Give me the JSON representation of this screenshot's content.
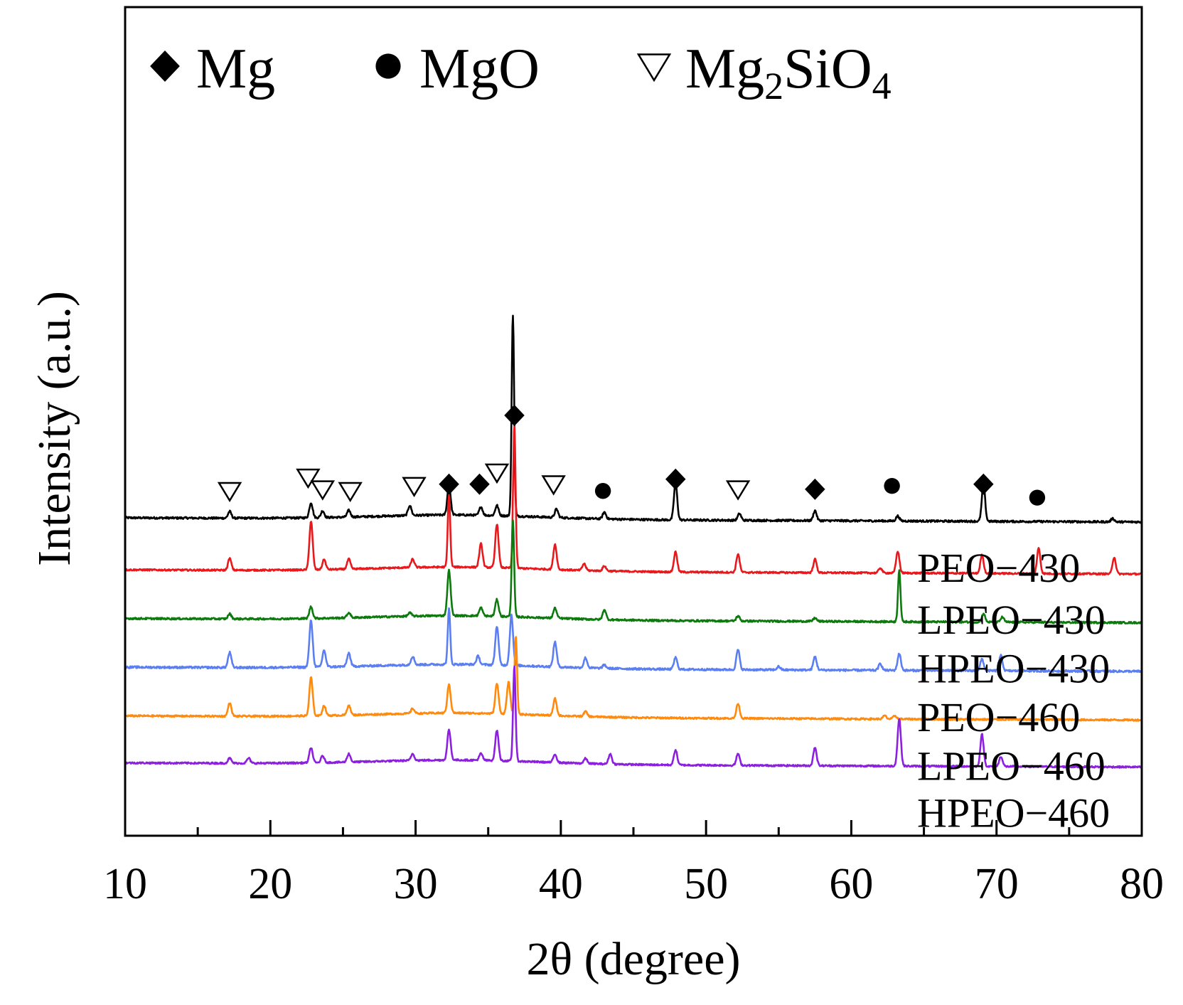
{
  "chart_data": {
    "type": "line",
    "title": "",
    "xlabel": "2θ (degree)",
    "ylabel": "Intensity (a.u.)",
    "xlim": [
      10,
      80
    ],
    "xticks": [
      10,
      20,
      30,
      40,
      50,
      60,
      70,
      80
    ],
    "yticks": [],
    "grid": false,
    "legend": {
      "placement": "top",
      "entries": [
        {
          "marker": "filled-diamond",
          "label": "Mg"
        },
        {
          "marker": "filled-circle",
          "label": "MgO"
        },
        {
          "marker": "open-triangle-down",
          "label": "Mg",
          "subscript": "2",
          "label_tail": "SiO",
          "subscript_tail": "4"
        }
      ]
    },
    "series": [
      {
        "name": "PEO−430",
        "color": "#000000",
        "baseline": 10.0,
        "noise": 0.12,
        "peaks": [
          [
            17.2,
            0.4
          ],
          [
            22.8,
            0.9
          ],
          [
            23.6,
            0.4
          ],
          [
            25.4,
            0.4
          ],
          [
            29.6,
            0.6
          ],
          [
            32.3,
            1.8
          ],
          [
            34.5,
            0.5
          ],
          [
            35.6,
            0.6
          ],
          [
            36.7,
            12.0
          ],
          [
            39.7,
            0.5
          ],
          [
            43.0,
            0.4
          ],
          [
            47.9,
            2.2
          ],
          [
            52.3,
            0.4
          ],
          [
            57.5,
            0.6
          ],
          [
            63.2,
            0.3
          ],
          [
            69.1,
            2.2
          ],
          [
            78.0,
            0.2
          ]
        ]
      },
      {
        "name": "LPEO−430",
        "color": "#e8191c",
        "baseline": 6.9,
        "noise": 0.1,
        "peaks": [
          [
            17.2,
            0.7
          ],
          [
            22.8,
            2.9
          ],
          [
            23.7,
            0.6
          ],
          [
            25.4,
            0.6
          ],
          [
            29.8,
            0.5
          ],
          [
            32.3,
            4.3
          ],
          [
            34.5,
            1.4
          ],
          [
            35.6,
            2.6
          ],
          [
            36.8,
            8.5
          ],
          [
            39.6,
            1.5
          ],
          [
            41.6,
            0.4
          ],
          [
            43.0,
            0.3
          ],
          [
            47.9,
            1.2
          ],
          [
            52.2,
            1.1
          ],
          [
            57.5,
            0.8
          ],
          [
            62.0,
            0.3
          ],
          [
            63.2,
            1.3
          ],
          [
            69.0,
            1.1
          ],
          [
            72.9,
            1.5
          ],
          [
            78.1,
            1.0
          ]
        ]
      },
      {
        "name": "HPEO−430",
        "color": "#0d7a0d",
        "baseline": 4.0,
        "noise": 0.11,
        "peaks": [
          [
            17.2,
            0.3
          ],
          [
            22.8,
            0.7
          ],
          [
            25.4,
            0.3
          ],
          [
            29.6,
            0.2
          ],
          [
            32.3,
            2.7
          ],
          [
            34.5,
            0.5
          ],
          [
            35.6,
            1.0
          ],
          [
            36.7,
            5.7
          ],
          [
            39.6,
            0.6
          ],
          [
            43.0,
            0.6
          ],
          [
            52.2,
            0.3
          ],
          [
            57.5,
            0.2
          ],
          [
            63.3,
            3.1
          ],
          [
            69.1,
            0.5
          ],
          [
            70.4,
            0.3
          ]
        ]
      },
      {
        "name": "PEO−460",
        "color": "#5b7ef2",
        "baseline": 1.1,
        "noise": 0.12,
        "peaks": [
          [
            17.2,
            0.9
          ],
          [
            22.8,
            2.8
          ],
          [
            23.7,
            1.0
          ],
          [
            25.4,
            0.8
          ],
          [
            29.8,
            0.5
          ],
          [
            32.3,
            3.3
          ],
          [
            34.3,
            0.5
          ],
          [
            35.6,
            2.3
          ],
          [
            36.6,
            3.0
          ],
          [
            39.6,
            1.5
          ],
          [
            41.7,
            0.6
          ],
          [
            43.0,
            0.2
          ],
          [
            47.9,
            0.7
          ],
          [
            52.2,
            1.2
          ],
          [
            55.0,
            0.2
          ],
          [
            57.5,
            0.8
          ],
          [
            62.0,
            0.4
          ],
          [
            63.3,
            1.0
          ],
          [
            69.0,
            0.7
          ],
          [
            70.3,
            0.9
          ]
        ]
      },
      {
        "name": "LPEO−460",
        "color": "#ff8a0d",
        "baseline": -1.8,
        "noise": 0.1,
        "peaks": [
          [
            17.2,
            0.8
          ],
          [
            22.8,
            2.3
          ],
          [
            23.7,
            0.6
          ],
          [
            25.4,
            0.6
          ],
          [
            29.8,
            0.3
          ],
          [
            32.3,
            1.7
          ],
          [
            35.6,
            1.8
          ],
          [
            36.4,
            1.9
          ],
          [
            36.9,
            4.7
          ],
          [
            39.6,
            1.0
          ],
          [
            41.7,
            0.3
          ],
          [
            52.2,
            0.9
          ],
          [
            62.3,
            0.2
          ],
          [
            63.0,
            0.2
          ]
        ]
      },
      {
        "name": "HPEO−460",
        "color": "#8c1fe0",
        "baseline": -4.6,
        "noise": 0.1,
        "peaks": [
          [
            17.2,
            0.3
          ],
          [
            18.5,
            0.3
          ],
          [
            22.8,
            0.9
          ],
          [
            23.6,
            0.4
          ],
          [
            25.4,
            0.5
          ],
          [
            29.8,
            0.4
          ],
          [
            32.3,
            1.8
          ],
          [
            34.5,
            0.4
          ],
          [
            35.6,
            1.8
          ],
          [
            36.8,
            5.7
          ],
          [
            39.6,
            0.5
          ],
          [
            41.7,
            0.3
          ],
          [
            43.4,
            0.6
          ],
          [
            47.9,
            0.9
          ],
          [
            52.2,
            0.7
          ],
          [
            57.5,
            1.1
          ],
          [
            63.3,
            2.8
          ],
          [
            69.0,
            1.9
          ],
          [
            70.3,
            0.6
          ]
        ]
      }
    ],
    "annotations": [
      {
        "marker": "open-triangle-down",
        "x": 17.2,
        "level": 11.6
      },
      {
        "marker": "open-triangle-down",
        "x": 22.6,
        "level": 12.4
      },
      {
        "marker": "open-triangle-down",
        "x": 23.6,
        "level": 11.7
      },
      {
        "marker": "open-triangle-down",
        "x": 25.5,
        "level": 11.6
      },
      {
        "marker": "open-triangle-down",
        "x": 29.9,
        "level": 11.9
      },
      {
        "marker": "filled-diamond",
        "x": 32.3,
        "level": 12.0
      },
      {
        "marker": "filled-diamond",
        "x": 34.4,
        "level": 12.0
      },
      {
        "marker": "open-triangle-down",
        "x": 35.6,
        "level": 12.7
      },
      {
        "marker": "filled-diamond",
        "x": 36.8,
        "level": 16.1
      },
      {
        "marker": "open-triangle-down",
        "x": 39.5,
        "level": 12.0
      },
      {
        "marker": "filled-circle",
        "x": 42.9,
        "level": 11.6
      },
      {
        "marker": "filled-diamond",
        "x": 47.9,
        "level": 12.3
      },
      {
        "marker": "open-triangle-down",
        "x": 52.2,
        "level": 11.7
      },
      {
        "marker": "filled-diamond",
        "x": 57.5,
        "level": 11.7
      },
      {
        "marker": "filled-circle",
        "x": 62.8,
        "level": 11.9
      },
      {
        "marker": "filled-diamond",
        "x": 69.1,
        "level": 12.0
      },
      {
        "marker": "filled-circle",
        "x": 72.8,
        "level": 11.2
      }
    ]
  }
}
